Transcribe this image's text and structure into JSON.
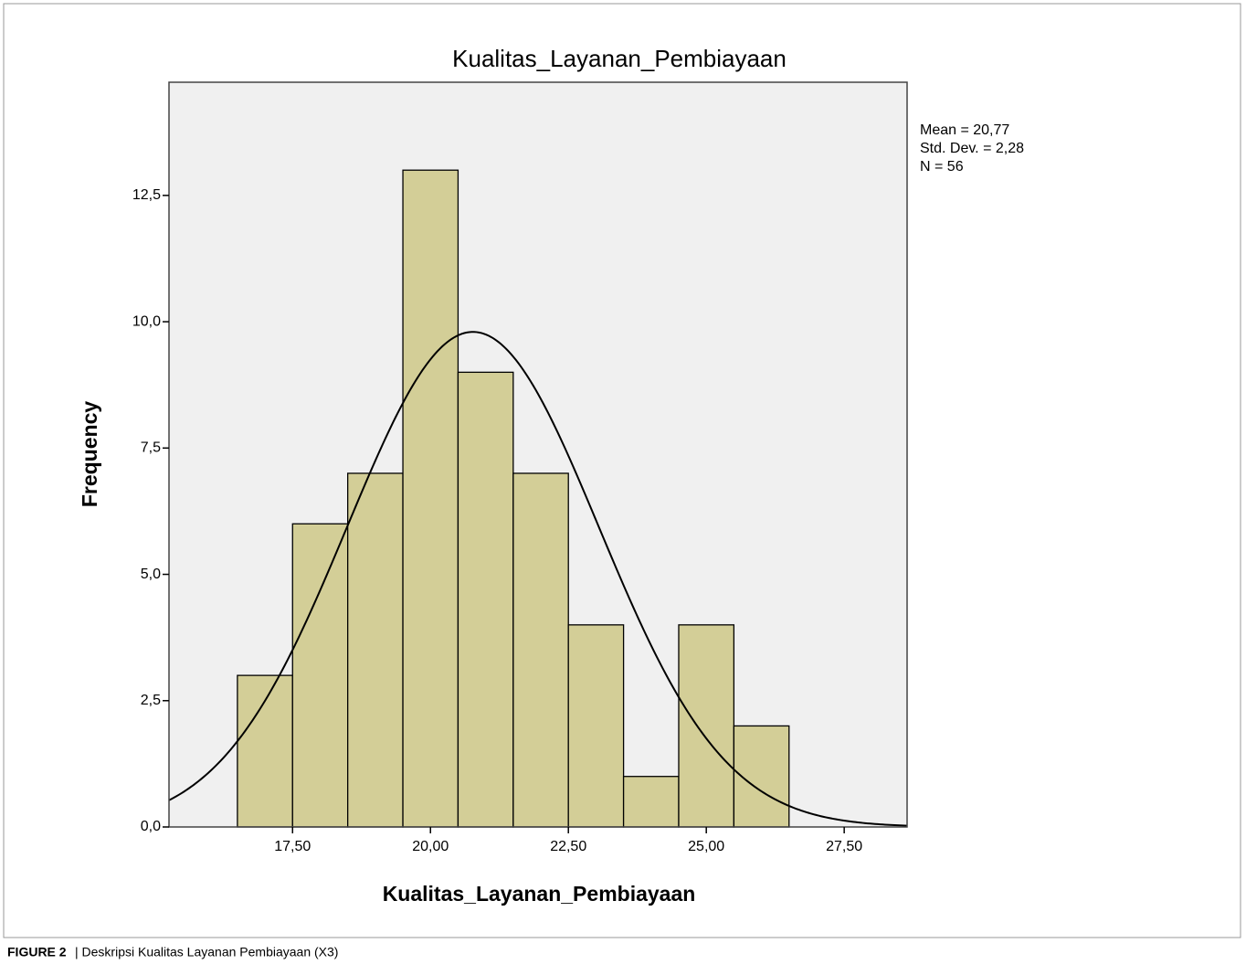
{
  "chart_data": {
    "type": "histogram",
    "title": "Kualitas_Layanan_Pembiayaan",
    "x_label": "Kualitas_Layanan_Pembiayaan",
    "y_label": "Frequency",
    "bins": [
      16.5,
      17.5,
      18.5,
      19.5,
      20.5,
      21.5,
      22.5,
      23.5,
      24.5,
      25.5,
      26.5
    ],
    "values": [
      3,
      6,
      7,
      13,
      9,
      7,
      4,
      1,
      4,
      2
    ],
    "color": "#d3ce97",
    "xlim": [
      15.26,
      28.64
    ],
    "ylim": [
      0,
      14.74
    ],
    "xticks": [
      {
        "value": 17.5,
        "label": "17,50"
      },
      {
        "value": 20,
        "label": "20,00"
      },
      {
        "value": 22.5,
        "label": "22,50"
      },
      {
        "value": 25,
        "label": "25,00"
      },
      {
        "value": 27.5,
        "label": "27,50"
      }
    ],
    "yticks": [
      {
        "value": 0,
        "label": "0,0"
      },
      {
        "value": 2.5,
        "label": "2,5"
      },
      {
        "value": 5,
        "label": "5,0"
      },
      {
        "value": 7.5,
        "label": "7,5"
      },
      {
        "value": 10,
        "label": "10,0"
      },
      {
        "value": 12.5,
        "label": "12,5"
      }
    ],
    "stats": [
      {
        "value": 20.77,
        "label": "Mean = 20,77"
      },
      {
        "value": 2.28,
        "label": "Std. Dev. = 2,28"
      },
      {
        "value": 56,
        "label": "N = 56"
      }
    ],
    "normal_curve": true
  },
  "caption": {
    "label": "FIGURE 2",
    "text": "| Deskripsi Kualitas Layanan Pembiayaan (X3)"
  }
}
